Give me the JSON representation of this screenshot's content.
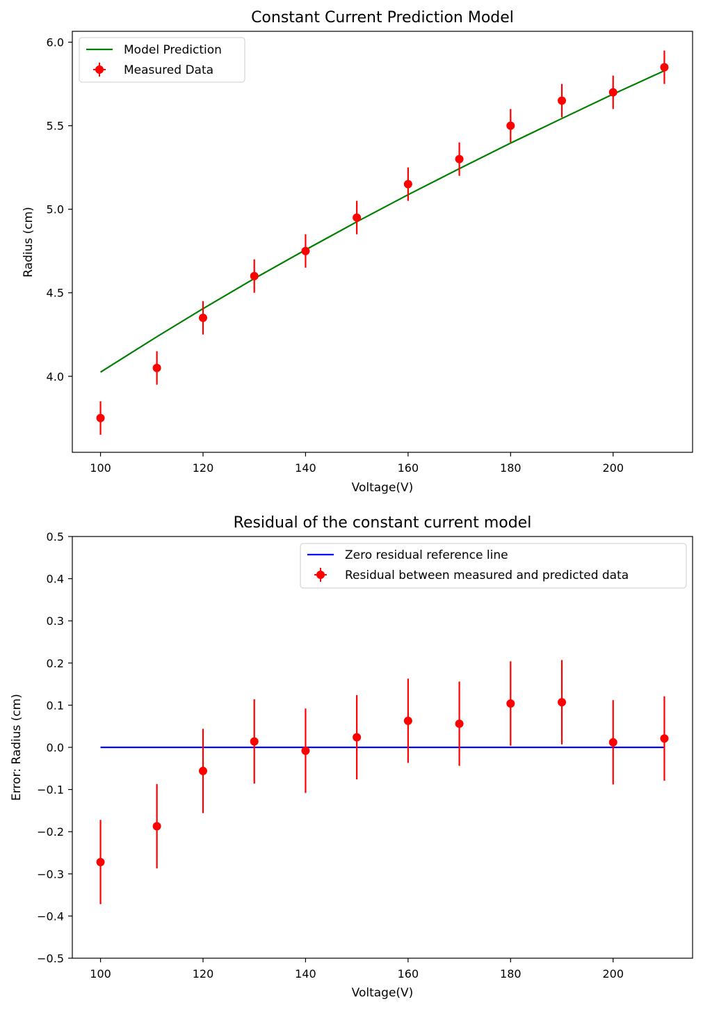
{
  "chart_data": [
    {
      "type": "line",
      "title": "Constant Current Prediction Model",
      "xlabel": "Voltage(V)",
      "ylabel": "Radius (cm)",
      "xlim": [
        94.5,
        215.5
      ],
      "ylim": [
        3.545,
        6.065
      ],
      "xticks": [
        100,
        120,
        140,
        160,
        180,
        200
      ],
      "xtick_labels": [
        "100",
        "120",
        "140",
        "160",
        "180",
        "200"
      ],
      "yticks": [
        4.0,
        4.5,
        5.0,
        5.5,
        6.0
      ],
      "ytick_labels": [
        "4.0",
        "4.5",
        "5.0",
        "5.5",
        "6.0"
      ],
      "legend_position": "top-left",
      "series": [
        {
          "name": "Model Prediction",
          "kind": "line",
          "color": "#008000",
          "x": [
            100,
            111,
            120,
            130,
            140,
            150,
            160,
            170,
            180,
            190,
            200,
            210
          ],
          "y": [
            4.025,
            4.237,
            4.405,
            4.585,
            4.757,
            4.925,
            5.087,
            5.243,
            5.396,
            5.543,
            5.689,
            5.829
          ]
        },
        {
          "name": "Measured Data",
          "kind": "errorbar",
          "color": "#ff0000",
          "x": [
            100,
            111,
            120,
            130,
            140,
            150,
            160,
            170,
            180,
            190,
            200,
            210
          ],
          "y": [
            3.75,
            4.05,
            4.35,
            4.6,
            4.75,
            4.95,
            5.15,
            5.3,
            5.5,
            5.65,
            5.7,
            5.85
          ],
          "yerr": 0.1
        }
      ]
    },
    {
      "type": "scatter",
      "title": "Residual of the constant current model",
      "xlabel": "Voltage(V)",
      "ylabel": "Error: Radius (cm)",
      "xlim": [
        94.5,
        215.5
      ],
      "ylim": [
        -0.5,
        0.5
      ],
      "xticks": [
        100,
        120,
        140,
        160,
        180,
        200
      ],
      "xtick_labels": [
        "100",
        "120",
        "140",
        "160",
        "180",
        "200"
      ],
      "yticks": [
        -0.5,
        -0.4,
        -0.3,
        -0.2,
        -0.1,
        0.0,
        0.1,
        0.2,
        0.3,
        0.4,
        0.5
      ],
      "ytick_labels": [
        "−0.5",
        "−0.4",
        "−0.3",
        "−0.2",
        "−0.1",
        "0.0",
        "0.1",
        "0.2",
        "0.3",
        "0.4",
        "0.5"
      ],
      "legend_position": "top-right",
      "series": [
        {
          "name": "Zero residual reference line",
          "kind": "line",
          "color": "#0000ff",
          "x": [
            100,
            210
          ],
          "y": [
            0,
            0
          ]
        },
        {
          "name": "Residual between measured and predicted data",
          "kind": "errorbar",
          "color": "#ff0000",
          "x": [
            100,
            111,
            120,
            130,
            140,
            150,
            160,
            170,
            180,
            190,
            200,
            210
          ],
          "y": [
            -0.272,
            -0.187,
            -0.056,
            0.014,
            -0.008,
            0.024,
            0.063,
            0.056,
            0.104,
            0.107,
            0.012,
            0.021
          ],
          "yerr": 0.1
        }
      ]
    }
  ]
}
